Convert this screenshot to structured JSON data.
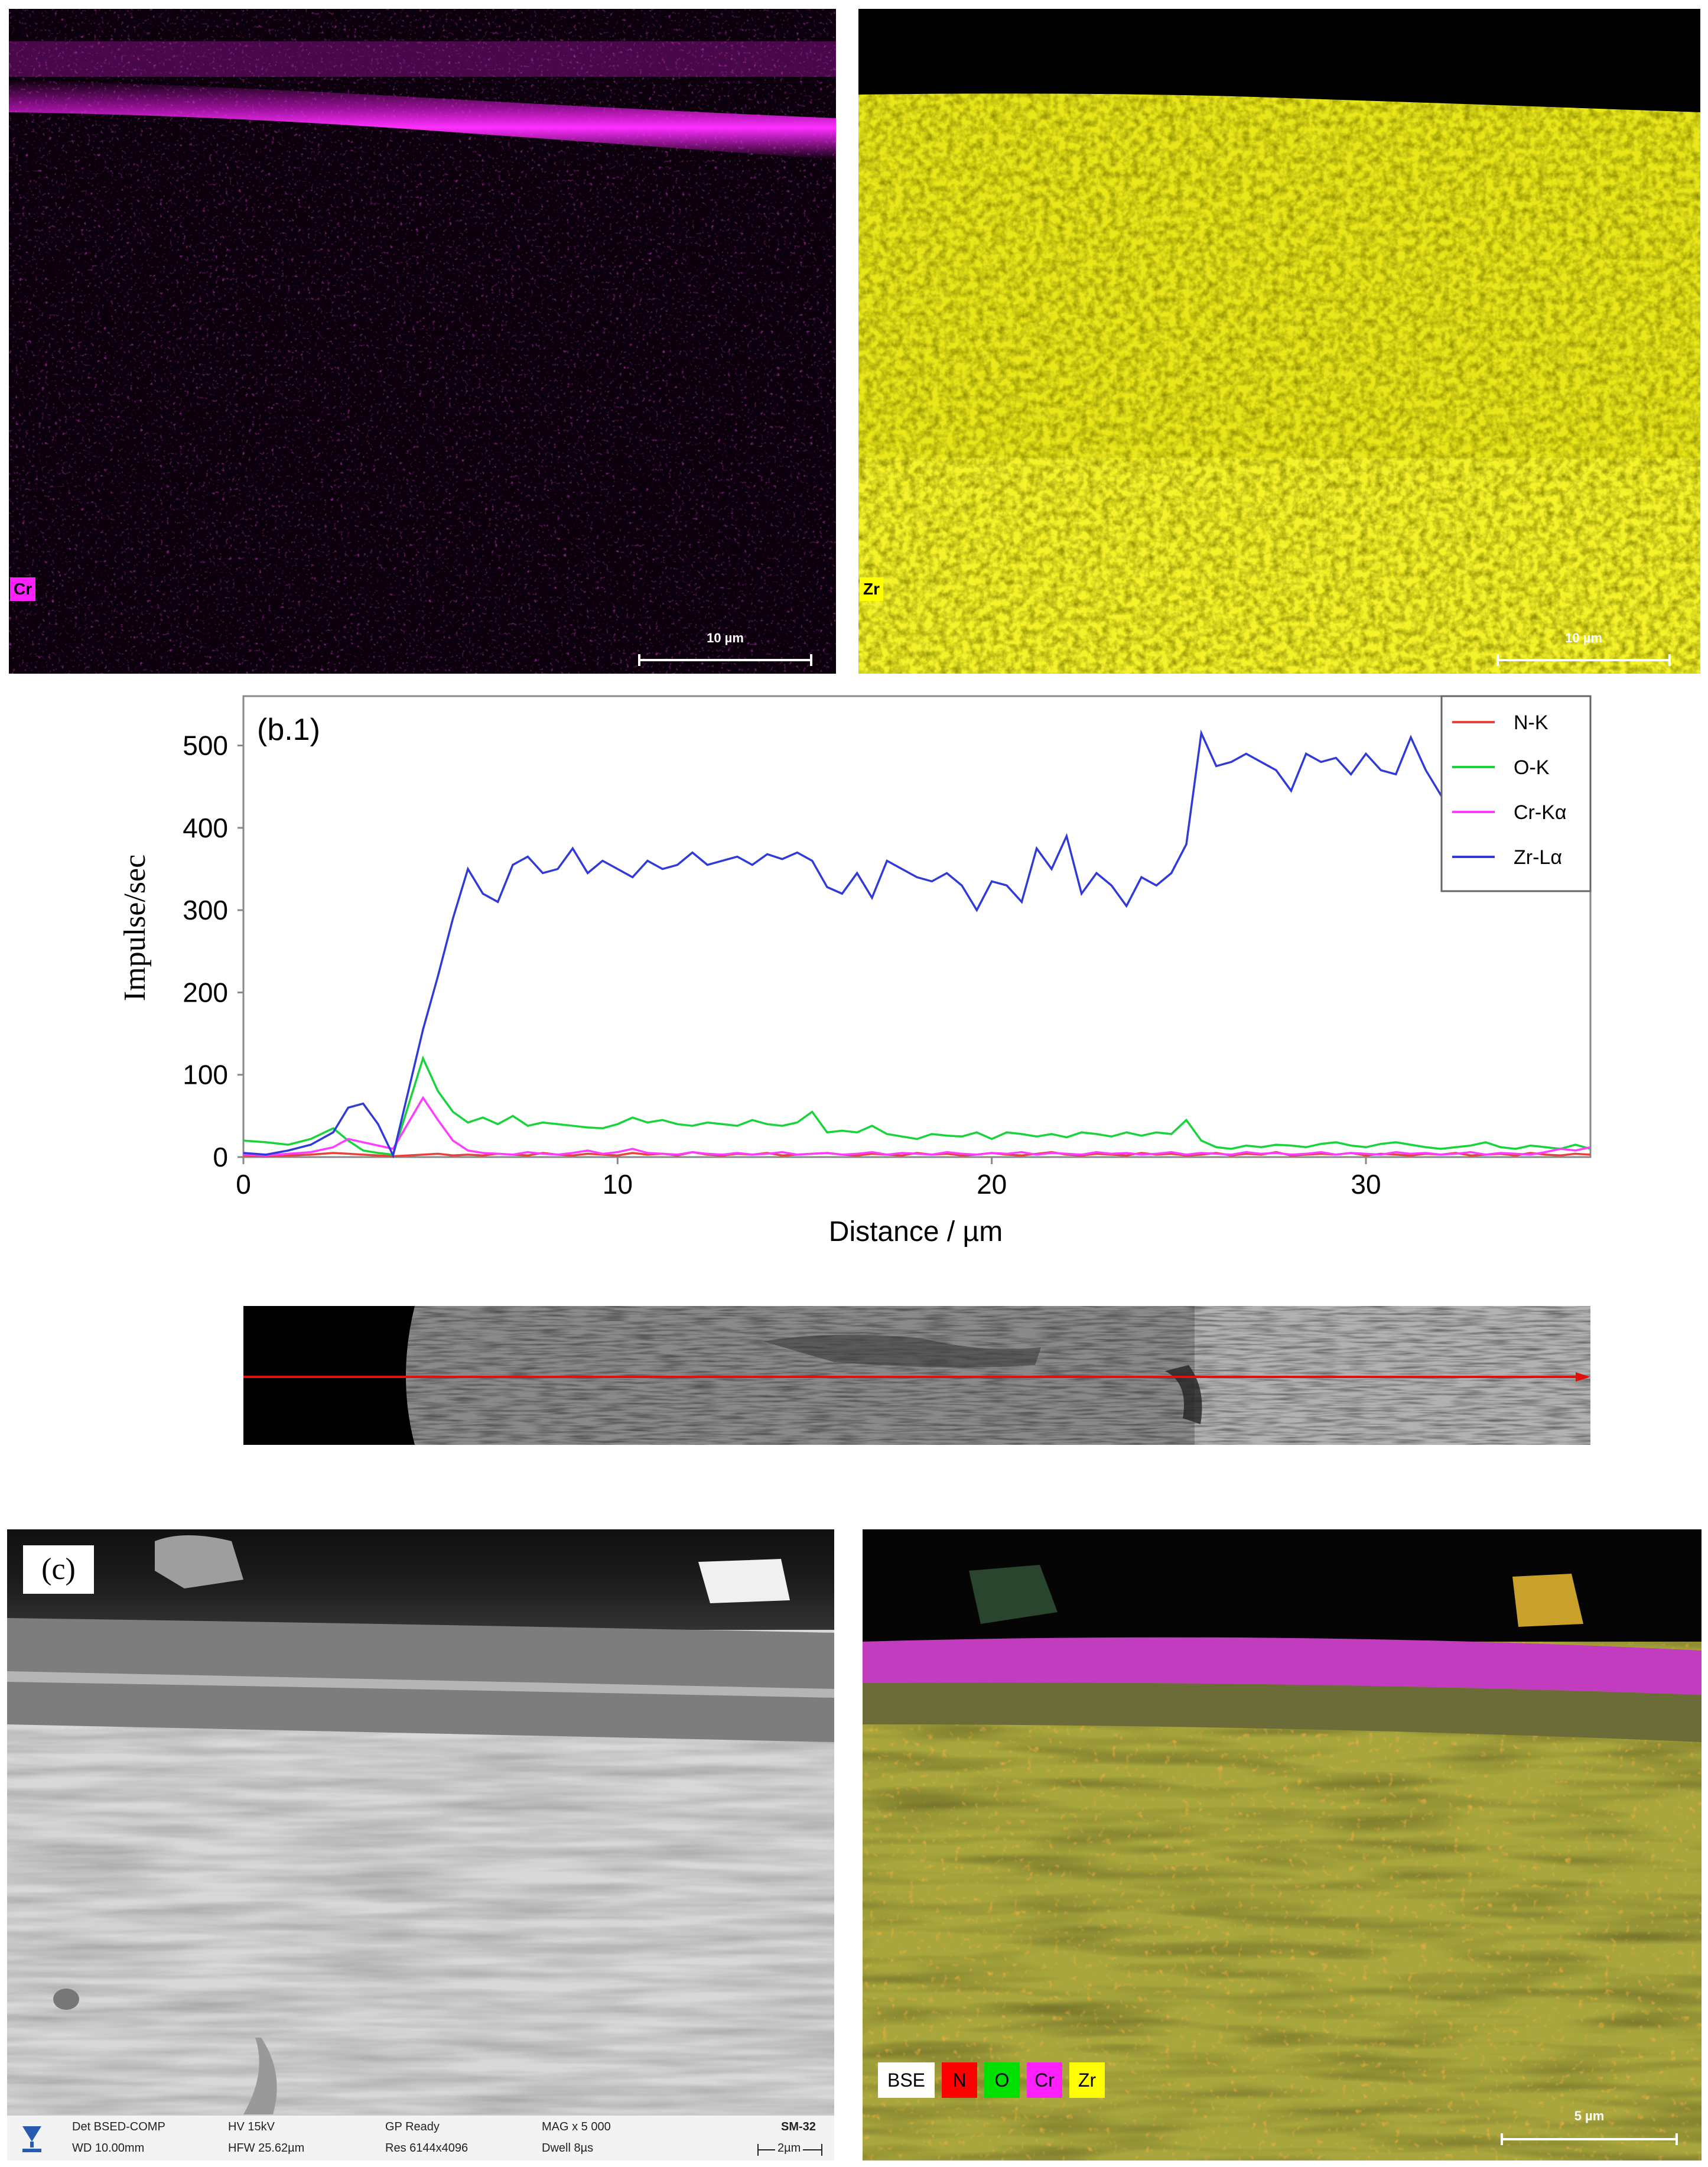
{
  "top_left_map": {
    "element_label": "Cr",
    "scale_label": "10 µm",
    "color": "#ff20ff"
  },
  "top_right_map": {
    "element_label": "Zr",
    "scale_label": "10 µm",
    "color": "#ffff00"
  },
  "line_scan": {
    "panel_label": "(b.1)",
    "ylabel": "Impulse/sec",
    "xlabel": "Distance / µm",
    "xticks": [
      "0",
      "10",
      "20",
      "30"
    ],
    "yticks": [
      "0",
      "100",
      "200",
      "300",
      "400",
      "500"
    ],
    "legend": [
      {
        "name": "N-K",
        "color": "#e8403a"
      },
      {
        "name": "O-K",
        "color": "#17d43a"
      },
      {
        "name": "Cr-Kα",
        "color": "#ff3cff"
      },
      {
        "name": "Zr-Lα",
        "color": "#2f3ad9"
      }
    ]
  },
  "chart_data": {
    "type": "line",
    "xlim": [
      0,
      36
    ],
    "ylim": [
      0,
      560
    ],
    "x": [
      0,
      0.6,
      1.2,
      1.8,
      2.4,
      2.8,
      3.2,
      3.6,
      4.0,
      4.8,
      5.2,
      5.6,
      6.0,
      6.4,
      6.8,
      7.2,
      7.6,
      8.0,
      8.4,
      8.8,
      9.2,
      9.6,
      10.0,
      10.4,
      10.8,
      11.2,
      11.6,
      12.0,
      12.4,
      12.8,
      13.2,
      13.6,
      14.0,
      14.4,
      14.8,
      15.2,
      15.6,
      16.0,
      16.4,
      16.8,
      17.2,
      17.6,
      18.0,
      18.4,
      18.8,
      19.2,
      19.6,
      20.0,
      20.4,
      20.8,
      21.2,
      21.6,
      22.0,
      22.4,
      22.8,
      23.2,
      23.6,
      24.0,
      24.4,
      24.8,
      25.2,
      25.6,
      26.0,
      26.4,
      26.8,
      27.2,
      27.6,
      28.0,
      28.4,
      28.8,
      29.2,
      29.6,
      30.0,
      30.4,
      30.8,
      31.2,
      31.6,
      32.0,
      32.4,
      32.8,
      33.2,
      33.6,
      34.0,
      34.4,
      34.8,
      35.2,
      35.6,
      36.0
    ],
    "series": [
      {
        "name": "N-K",
        "values": [
          2,
          1,
          2,
          3,
          5,
          4,
          3,
          2,
          1,
          3,
          4,
          2,
          3,
          2,
          4,
          3,
          2,
          5,
          3,
          2,
          4,
          3,
          2,
          5,
          3,
          4,
          2,
          6,
          3,
          2,
          4,
          3,
          5,
          2,
          3,
          4,
          5,
          3,
          2,
          4,
          3,
          2,
          5,
          3,
          4,
          2,
          3,
          5,
          3,
          2,
          4,
          6,
          3,
          2,
          4,
          3,
          2,
          5,
          3,
          4,
          2,
          3,
          5,
          2,
          4,
          3,
          6,
          2,
          3,
          4,
          3,
          5,
          2,
          4,
          3,
          2,
          4,
          3,
          5,
          2,
          3,
          4,
          2,
          5,
          3,
          2,
          4,
          3
        ]
      },
      {
        "name": "O-K",
        "values": [
          20,
          18,
          15,
          22,
          35,
          20,
          8,
          5,
          3,
          120,
          80,
          55,
          42,
          48,
          40,
          50,
          38,
          42,
          40,
          38,
          36,
          35,
          40,
          48,
          42,
          45,
          40,
          38,
          42,
          40,
          38,
          45,
          40,
          38,
          42,
          55,
          30,
          32,
          30,
          38,
          28,
          25,
          22,
          28,
          26,
          25,
          30,
          22,
          30,
          28,
          25,
          28,
          24,
          30,
          28,
          25,
          30,
          26,
          30,
          28,
          45,
          20,
          12,
          10,
          14,
          12,
          15,
          14,
          12,
          16,
          18,
          14,
          12,
          16,
          18,
          15,
          12,
          10,
          12,
          14,
          18,
          12,
          10,
          14,
          12,
          10,
          15,
          10
        ]
      },
      {
        "name": "Cr-Kα",
        "values": [
          3,
          2,
          4,
          6,
          12,
          22,
          18,
          14,
          10,
          72,
          45,
          20,
          8,
          5,
          4,
          3,
          6,
          4,
          3,
          5,
          8,
          4,
          6,
          10,
          5,
          4,
          3,
          6,
          4,
          3,
          5,
          3,
          4,
          6,
          3,
          4,
          5,
          3,
          4,
          6,
          3,
          5,
          4,
          3,
          6,
          4,
          3,
          5,
          4,
          6,
          3,
          5,
          4,
          3,
          6,
          4,
          5,
          3,
          4,
          6,
          3,
          5,
          4,
          3,
          6,
          4,
          5,
          3,
          4,
          6,
          3,
          5,
          4,
          3,
          6,
          4,
          5,
          3,
          4,
          6,
          3,
          5,
          4,
          3,
          6,
          10,
          8,
          12
        ]
      },
      {
        "name": "Zr-Lα",
        "values": [
          5,
          3,
          8,
          15,
          30,
          60,
          65,
          40,
          2,
          155,
          220,
          290,
          350,
          320,
          310,
          355,
          365,
          345,
          350,
          375,
          345,
          360,
          350,
          340,
          360,
          350,
          355,
          370,
          355,
          360,
          365,
          355,
          368,
          362,
          370,
          360,
          328,
          320,
          345,
          315,
          360,
          350,
          340,
          335,
          345,
          330,
          300,
          335,
          330,
          310,
          375,
          350,
          390,
          320,
          345,
          330,
          305,
          340,
          330,
          345,
          380,
          515,
          475,
          480,
          490,
          480,
          470,
          445,
          490,
          480,
          485,
          465,
          490,
          470,
          465,
          510,
          470,
          440,
          480,
          470,
          460,
          475,
          490,
          470,
          530,
          470,
          490,
          510
        ]
      }
    ]
  },
  "scan_strip": {
    "arrow_color": "#e01010"
  },
  "bse_panel": {
    "panel_label": "(c)",
    "meta": {
      "det": "Det BSED-COMP",
      "wd": "WD 10.00mm",
      "hv": "HV 15kV",
      "hfw": "HFW 25.62µm",
      "gp": "GP Ready",
      "res": "Res 6144x4096",
      "mag": "MAG x 5 000",
      "dwell": "Dwell 8µs",
      "sample": "SM-32",
      "scale": "2µm"
    }
  },
  "overlay_panel": {
    "legend": [
      {
        "label": "BSE",
        "bg": "#ffffff",
        "fg": "#000000"
      },
      {
        "label": "N",
        "bg": "#ff0000",
        "fg": "#000000"
      },
      {
        "label": "O",
        "bg": "#00e000",
        "fg": "#000000"
      },
      {
        "label": "Cr",
        "bg": "#ff20ff",
        "fg": "#000000"
      },
      {
        "label": "Zr",
        "bg": "#ffff00",
        "fg": "#000000"
      }
    ],
    "scale_label": "5 µm"
  }
}
